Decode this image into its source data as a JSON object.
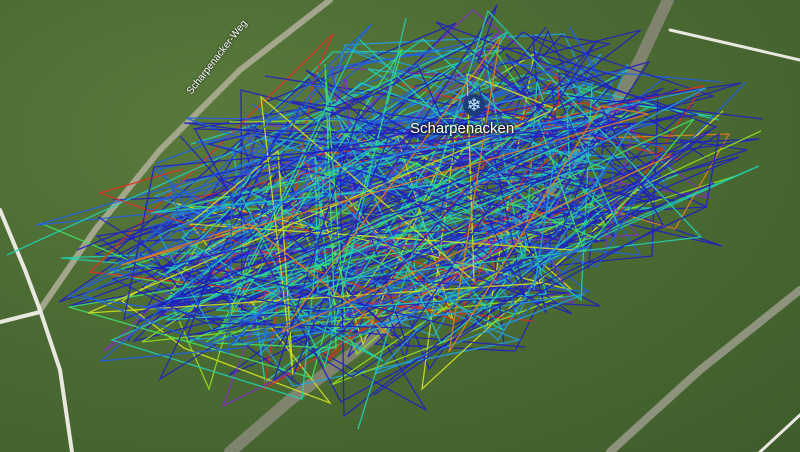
{
  "map": {
    "place_label": "Scharpenacken",
    "place_icon": "snowflake-icon",
    "road_label": "Scharpenacker-Weg",
    "track_colors": [
      "#2020c0",
      "#2060e0",
      "#20a0e0",
      "#20d0b0",
      "#40e060",
      "#90e020",
      "#d0e020",
      "#e08020",
      "#e03020",
      "#8030c0"
    ]
  }
}
